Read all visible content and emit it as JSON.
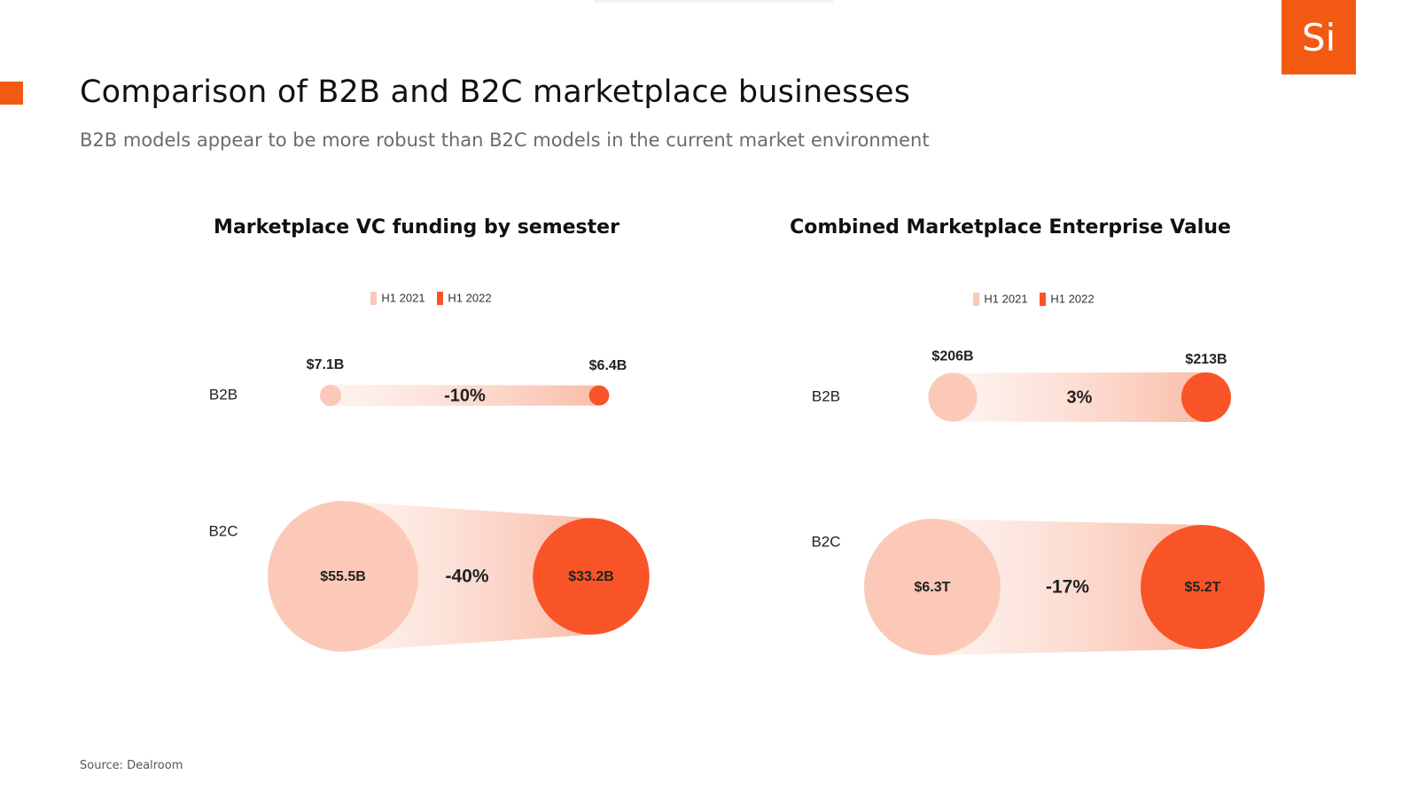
{
  "page": {
    "title": "Comparison of B2B and B2C marketplace businesses",
    "subtitle": "B2B models appear to be more robust than B2C models in the current market environment",
    "logo_text": "Si",
    "source": "Source: Dealroom",
    "accent_color": "#f25a14"
  },
  "colors": {
    "h1_2021": "#fcc9b8",
    "h1_2022": "#f95427"
  },
  "chart_data": [
    {
      "type": "dumbbell-bubble",
      "title": "Marketplace VC funding by semester",
      "legend": [
        "H1 2021",
        "H1 2022"
      ],
      "rows": [
        {
          "category": "B2B",
          "h1_2021": 7.1,
          "h1_2022": 6.4,
          "h1_2021_label": "$7.1B",
          "h1_2022_label": "$6.4B",
          "change_label": "-10%"
        },
        {
          "category": "B2C",
          "h1_2021": 55.5,
          "h1_2022": 33.2,
          "h1_2021_label": "$55.5B",
          "h1_2022_label": "$33.2B",
          "change_label": "-40%"
        }
      ]
    },
    {
      "type": "dumbbell-bubble",
      "title": "Combined Marketplace Enterprise Value",
      "legend": [
        "H1 2021",
        "H1 2022"
      ],
      "rows": [
        {
          "category": "B2B",
          "h1_2021": 206,
          "h1_2022": 213,
          "h1_2021_label": "$206B",
          "h1_2022_label": "$213B",
          "change_label": "3%"
        },
        {
          "category": "B2C",
          "h1_2021": 6300,
          "h1_2022": 5200,
          "h1_2021_label": "$6.3T",
          "h1_2022_label": "$5.2T",
          "change_label": "-17%"
        }
      ]
    }
  ]
}
